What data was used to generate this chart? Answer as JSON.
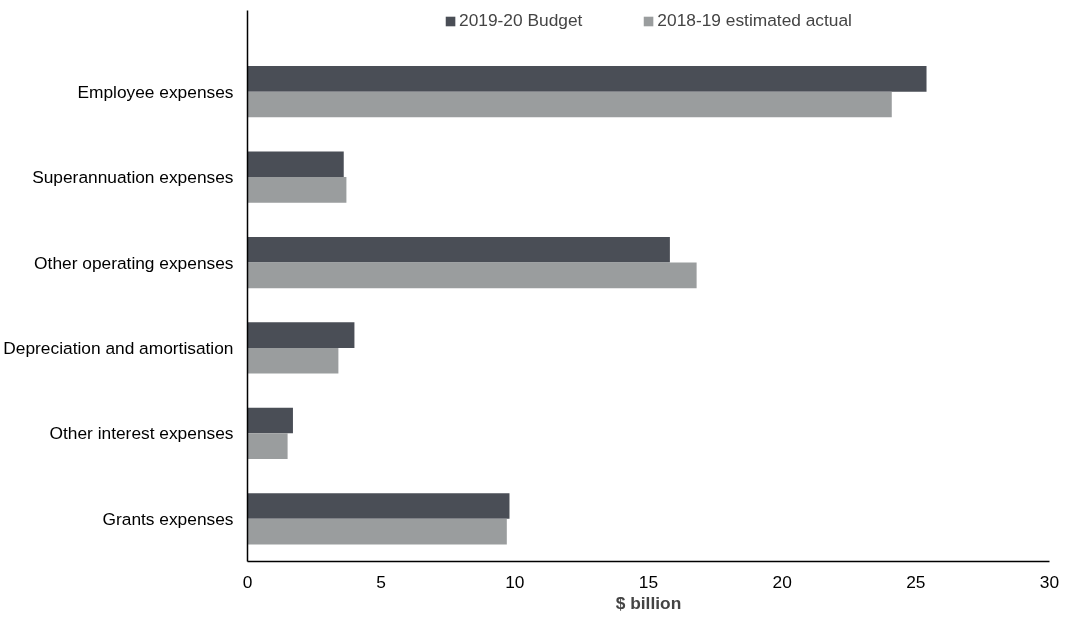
{
  "chart_data": {
    "type": "bar",
    "orientation": "horizontal",
    "xlabel": "$ billion",
    "categories": [
      "Employee expenses",
      "Superannuation expenses",
      "Other operating expenses",
      "Depreciation and amortisation",
      "Other interest expenses",
      "Grants expenses"
    ],
    "series": [
      {
        "name": "2019-20 Budget",
        "color": "#4a4e56",
        "values": [
          25.4,
          3.6,
          15.8,
          4.0,
          1.7,
          9.8
        ]
      },
      {
        "name": "2018-19 estimated actual",
        "color": "#9a9d9e",
        "values": [
          24.1,
          3.7,
          16.8,
          3.4,
          1.5,
          9.7
        ]
      }
    ],
    "xlim": [
      0,
      30
    ],
    "xticks": [
      0,
      5,
      10,
      15,
      20,
      25,
      30
    ],
    "grid": false,
    "legend": "top"
  }
}
